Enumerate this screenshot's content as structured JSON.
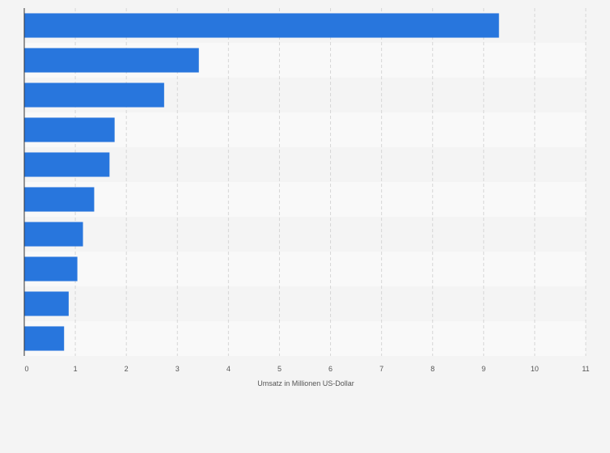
{
  "chart_data": {
    "type": "bar",
    "orientation": "horizontal",
    "categories": [
      "",
      "",
      "",
      "",
      "",
      "",
      "",
      "",
      "",
      ""
    ],
    "values": [
      9.3,
      3.42,
      2.74,
      1.77,
      1.67,
      1.37,
      1.15,
      1.04,
      0.87,
      0.78
    ],
    "title": "",
    "xlabel": "Umsatz in Millionen US-Dollar",
    "ylabel": "",
    "xlim": [
      0,
      11
    ],
    "xticks": [
      "0",
      "1",
      "2",
      "3",
      "4",
      "5",
      "6",
      "7",
      "8",
      "9",
      "10",
      "11"
    ],
    "grid": true,
    "legend": "none",
    "colors": {
      "bar": "#2876dd",
      "band_dark": "#f4f4f4",
      "band_light": "#f9f9f9",
      "grid": "#d6d6d6",
      "axis": "#333333",
      "text": "#555555"
    }
  }
}
